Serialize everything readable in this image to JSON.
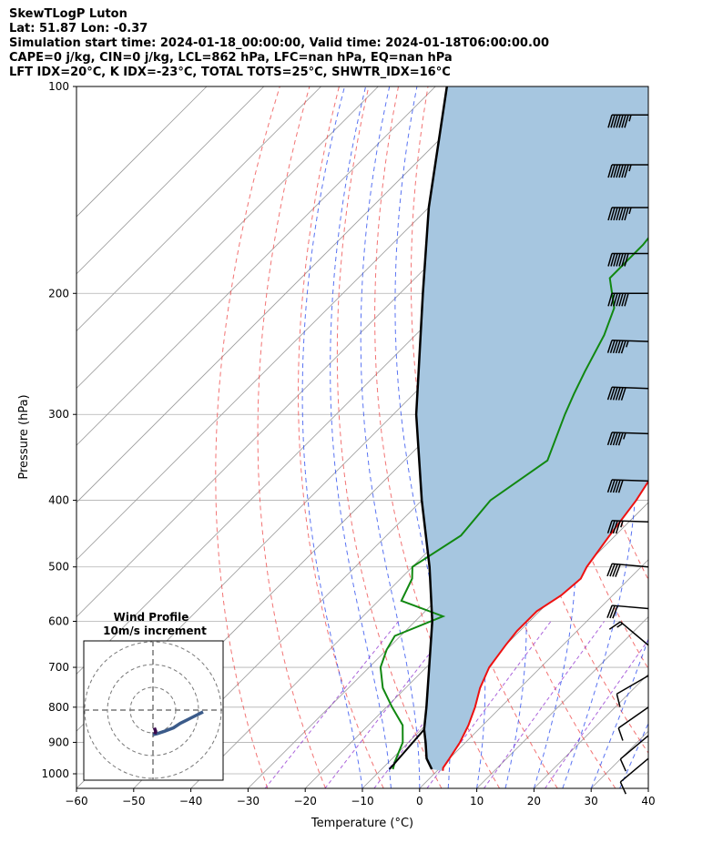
{
  "header": {
    "line1": "SkewTLogP Luton",
    "line2": "Lat: 51.87   Lon: -0.37",
    "line3": "Simulation start time: 2024-01-18_00:00:00, Valid time: 2024-01-18T06:00:00.00",
    "line4": "CAPE=0 j/kg, CIN=0 j/kg, LCL=862 hPa, LFC=nan hPa, EQ=nan hPa",
    "line5": "LFT IDX=20°C, K IDX=-23°C, TOTAL TOTS=25°C, SHWTR_IDX=16°C"
  },
  "colors": {
    "temperature": "#ee1111",
    "dewpoint": "#118811",
    "parcel": "#000000",
    "cape_fill": "#a6c6e0",
    "dry_adiabat": "#ee4444",
    "moist_adiabat": "#2244ee",
    "mixing_ratio": "#8822cc",
    "isotherm": "#999999"
  },
  "chart_data": {
    "type": "skew-t",
    "xlabel": "Temperature (°C)",
    "ylabel": "Pressure (hPa)",
    "xlim": [
      -60,
      40
    ],
    "ylim": [
      1050,
      100
    ],
    "x_ticks": [
      "−60",
      "−50",
      "−40",
      "−30",
      "−20",
      "−10",
      "0",
      "10",
      "20",
      "30",
      "40"
    ],
    "y_ticks": [
      "100",
      "200",
      "300",
      "400",
      "500",
      "600",
      "700",
      "800",
      "900",
      "1000"
    ],
    "y_log_scale": true,
    "grid": true,
    "temperature": [
      {
        "p": 990,
        "t": 1
      },
      {
        "p": 980,
        "t": 0.5
      },
      {
        "p": 950,
        "t": 0
      },
      {
        "p": 900,
        "t": -1
      },
      {
        "p": 850,
        "t": -2.5
      },
      {
        "p": 800,
        "t": -4.5
      },
      {
        "p": 750,
        "t": -7
      },
      {
        "p": 700,
        "t": -9
      },
      {
        "p": 650,
        "t": -10
      },
      {
        "p": 620,
        "t": -10.5
      },
      {
        "p": 580,
        "t": -10.5
      },
      {
        "p": 550,
        "t": -9
      },
      {
        "p": 520,
        "t": -8.5
      },
      {
        "p": 500,
        "t": -9.5
      },
      {
        "p": 450,
        "t": -11
      },
      {
        "p": 400,
        "t": -12.5
      },
      {
        "p": 350,
        "t": -15
      },
      {
        "p": 320,
        "t": -16.5
      },
      {
        "p": 290,
        "t": -18.5
      },
      {
        "p": 260,
        "t": -21
      },
      {
        "p": 250,
        "t": -21.5
      },
      {
        "p": 230,
        "t": -21.5
      },
      {
        "p": 210,
        "t": -21.5
      },
      {
        "p": 200,
        "t": -22
      },
      {
        "p": 180,
        "t": -24
      },
      {
        "p": 160,
        "t": -26
      },
      {
        "p": 140,
        "t": -28
      },
      {
        "p": 120,
        "t": -30
      },
      {
        "p": 100,
        "t": -32
      }
    ],
    "dewpoint": [
      {
        "p": 985,
        "t": -8
      },
      {
        "p": 960,
        "t": -9
      },
      {
        "p": 900,
        "t": -11
      },
      {
        "p": 850,
        "t": -14
      },
      {
        "p": 800,
        "t": -19
      },
      {
        "p": 750,
        "t": -24
      },
      {
        "p": 700,
        "t": -28
      },
      {
        "p": 660,
        "t": -30
      },
      {
        "p": 630,
        "t": -31
      },
      {
        "p": 590,
        "t": -26
      },
      {
        "p": 560,
        "t": -36
      },
      {
        "p": 520,
        "t": -38
      },
      {
        "p": 500,
        "t": -40
      },
      {
        "p": 450,
        "t": -37
      },
      {
        "p": 400,
        "t": -38
      },
      {
        "p": 350,
        "t": -35
      },
      {
        "p": 300,
        "t": -40
      },
      {
        "p": 280,
        "t": -42
      },
      {
        "p": 260,
        "t": -44
      },
      {
        "p": 230,
        "t": -47
      },
      {
        "p": 210,
        "t": -50
      },
      {
        "p": 190,
        "t": -56
      },
      {
        "p": 170,
        "t": -56
      },
      {
        "p": 140,
        "t": -58
      },
      {
        "p": 100,
        "t": -61
      }
    ],
    "parcel": [
      {
        "p": 985,
        "t": -1.2
      },
      {
        "p": 950,
        "t": -4
      },
      {
        "p": 900,
        "t": -7
      },
      {
        "p": 862,
        "t": -9.5
      },
      {
        "p": 800,
        "t": -13
      },
      {
        "p": 700,
        "t": -19.5
      },
      {
        "p": 600,
        "t": -27
      },
      {
        "p": 500,
        "t": -37
      },
      {
        "p": 400,
        "t": -50
      },
      {
        "p": 300,
        "t": -66
      },
      {
        "p": 250,
        "t": -75
      },
      {
        "p": 200,
        "t": -86
      },
      {
        "p": 150,
        "t": -100
      },
      {
        "p": 100,
        "t": -118
      }
    ],
    "lcl_segment": [
      {
        "p": 985,
        "t": -8.6
      },
      {
        "p": 862,
        "t": -9.5
      }
    ],
    "wind_barbs": [
      {
        "p": 110,
        "speed_kt": 75,
        "dir_deg": 270
      },
      {
        "p": 130,
        "speed_kt": 75,
        "dir_deg": 270
      },
      {
        "p": 150,
        "speed_kt": 75,
        "dir_deg": 270
      },
      {
        "p": 175,
        "speed_kt": 70,
        "dir_deg": 270
      },
      {
        "p": 200,
        "speed_kt": 70,
        "dir_deg": 270
      },
      {
        "p": 235,
        "speed_kt": 65,
        "dir_deg": 272
      },
      {
        "p": 275,
        "speed_kt": 60,
        "dir_deg": 272
      },
      {
        "p": 320,
        "speed_kt": 55,
        "dir_deg": 272
      },
      {
        "p": 375,
        "speed_kt": 50,
        "dir_deg": 272
      },
      {
        "p": 430,
        "speed_kt": 45,
        "dir_deg": 272
      },
      {
        "p": 500,
        "speed_kt": 40,
        "dir_deg": 275
      },
      {
        "p": 575,
        "speed_kt": 30,
        "dir_deg": 275
      },
      {
        "p": 650,
        "speed_kt": 15,
        "dir_deg": 310
      },
      {
        "p": 720,
        "speed_kt": 10,
        "dir_deg": 240
      },
      {
        "p": 800,
        "speed_kt": 10,
        "dir_deg": 235
      },
      {
        "p": 880,
        "speed_kt": 10,
        "dir_deg": 230
      },
      {
        "p": 950,
        "speed_kt": 10,
        "dir_deg": 230
      }
    ],
    "hodograph": {
      "title": "Wind Profile",
      "subtitle": "10m/s increment",
      "points_ms": [
        {
          "u": 0,
          "v": 0
        },
        {
          "u": 2,
          "v": 0.5
        },
        {
          "u": 5,
          "v": 1.5
        },
        {
          "u": 9,
          "v": 3
        },
        {
          "u": 12,
          "v": 5
        },
        {
          "u": 15,
          "v": 6.5
        },
        {
          "u": 18,
          "v": 8
        },
        {
          "u": 22,
          "v": 10
        }
      ],
      "near_surface_ms": [
        {
          "u": 0.8,
          "v": 0.3
        },
        {
          "u": 1.2,
          "v": 1.5
        },
        {
          "u": 0.6,
          "v": 3
        }
      ]
    }
  }
}
